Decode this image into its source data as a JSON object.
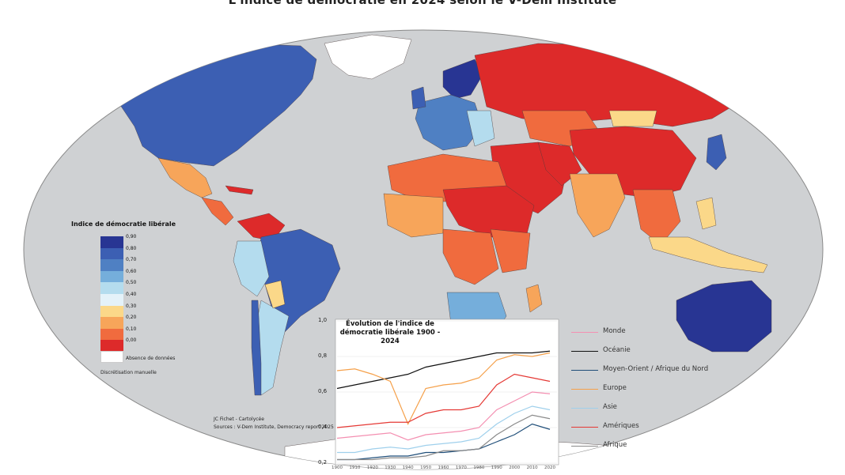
{
  "title": "L'indice de démocratie en 2024 selon le V-Dem Institute",
  "legend": {
    "title": "Indice de démocratie libérale",
    "classes": [
      {
        "label": "0,90",
        "color": "#283593"
      },
      {
        "label": "0,80",
        "color": "#3c5fb3"
      },
      {
        "label": "0,70",
        "color": "#4f80c3"
      },
      {
        "label": "0,60",
        "color": "#75aedb"
      },
      {
        "label": "0,50",
        "color": "#b4dcee"
      },
      {
        "label": "0,40",
        "color": "#e4f2f9"
      },
      {
        "label": "0,30",
        "color": "#fbd889"
      },
      {
        "label": "0,20",
        "color": "#f7a55a"
      },
      {
        "label": "0,10",
        "color": "#f06b3e"
      },
      {
        "label": "0,00",
        "color": "#dd2a2a"
      }
    ],
    "no_data_label": "Absence de données",
    "method_label": "Discrétisation manuelle"
  },
  "credits": {
    "author": "JC Fichet - Cartolycée",
    "source": "Sources : V-Dem Institute, Democracy report 2025"
  },
  "chart_data": {
    "type": "line",
    "title": "Évolution de l'indice de démocratie libérale 1900 - 2024",
    "x": [
      1900,
      1910,
      1920,
      1930,
      1940,
      1950,
      1960,
      1970,
      1980,
      1990,
      2000,
      2010,
      2020
    ],
    "x_tick_labels": [
      "1900",
      "1910",
      "1920",
      "1930",
      "1940",
      "1950",
      "1960",
      "1970",
      "1980",
      "1990",
      "2000",
      "2010",
      "2020"
    ],
    "y_tick_labels": [
      "0,2",
      "0,4",
      "0,6",
      "0,8",
      "1,0"
    ],
    "ylim": [
      0.2,
      1.0
    ],
    "xlim": [
      1900,
      2024
    ],
    "series": [
      {
        "name": "Monde",
        "color": "#f48fb1",
        "values": [
          0.34,
          0.35,
          0.36,
          0.37,
          0.33,
          0.36,
          0.37,
          0.38,
          0.4,
          0.5,
          0.55,
          0.6,
          0.59
        ]
      },
      {
        "name": "Océanie",
        "color": "#111111",
        "values": [
          0.62,
          0.64,
          0.66,
          0.68,
          0.7,
          0.74,
          0.76,
          0.78,
          0.8,
          0.82,
          0.82,
          0.82,
          0.83
        ]
      },
      {
        "name": "Moyen-Orient / Afrique du Nord",
        "color": "#1f4e79",
        "values": [
          0.22,
          0.22,
          0.23,
          0.24,
          0.24,
          0.26,
          0.26,
          0.27,
          0.28,
          0.32,
          0.36,
          0.42,
          0.39
        ]
      },
      {
        "name": "Europe",
        "color": "#f5a04a",
        "values": [
          0.72,
          0.73,
          0.7,
          0.66,
          0.42,
          0.62,
          0.64,
          0.65,
          0.68,
          0.78,
          0.81,
          0.8,
          0.82
        ]
      },
      {
        "name": "Asie",
        "color": "#9fd0ec",
        "values": [
          0.26,
          0.26,
          0.28,
          0.29,
          0.28,
          0.3,
          0.31,
          0.32,
          0.34,
          0.42,
          0.48,
          0.52,
          0.5
        ]
      },
      {
        "name": "Amériques",
        "color": "#e53935",
        "values": [
          0.4,
          0.41,
          0.42,
          0.43,
          0.43,
          0.48,
          0.5,
          0.5,
          0.52,
          0.64,
          0.7,
          0.68,
          0.66
        ]
      },
      {
        "name": "Afrique",
        "color": "#8a8a8a",
        "values": [
          0.22,
          0.22,
          0.22,
          0.23,
          0.23,
          0.24,
          0.27,
          0.27,
          0.28,
          0.36,
          0.42,
          0.47,
          0.45
        ]
      }
    ]
  }
}
